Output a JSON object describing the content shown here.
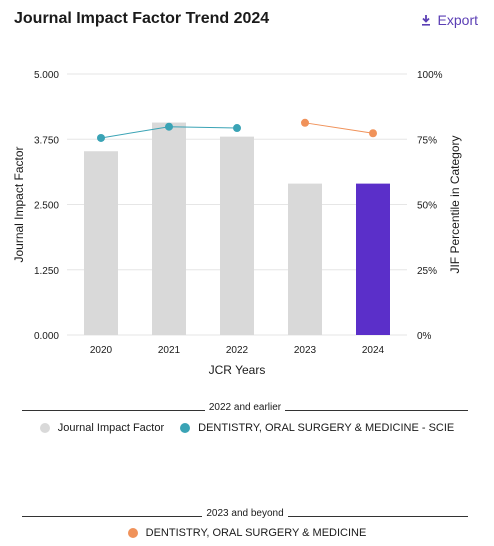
{
  "header": {
    "title": "Journal Impact Factor Trend 2024",
    "export_label": "Export",
    "export_icon": "download-icon"
  },
  "chart_data": {
    "type": "bar",
    "categories": [
      "2020",
      "2021",
      "2022",
      "2023",
      "2024"
    ],
    "xlabel": "JCR Years",
    "ylabel_left": "Journal Impact Factor",
    "ylabel_right": "JIF Percentile in Category",
    "ylim_left": [
      0,
      5
    ],
    "ylim_right": [
      0,
      100
    ],
    "yticks_left": [
      "0.000",
      "1.250",
      "2.500",
      "3.750",
      "5.000"
    ],
    "yticks_right": [
      "0%",
      "25%",
      "50%",
      "75%",
      "100%"
    ],
    "grid": true,
    "series": [
      {
        "name": "Journal Impact Factor",
        "type": "bar",
        "axis": "left",
        "values": [
          3.52,
          4.07,
          3.8,
          2.9,
          2.9
        ],
        "colors": [
          "#d9d9d9",
          "#d9d9d9",
          "#d9d9d9",
          "#d9d9d9",
          "#5b2fc9"
        ]
      },
      {
        "name": "DENTISTRY, ORAL SURGERY & MEDICINE - SCIE",
        "type": "line",
        "axis": "right",
        "color": "#3aa3b5",
        "values": [
          75.5,
          79.8,
          79.3,
          null,
          null
        ]
      },
      {
        "name": "DENTISTRY, ORAL SURGERY & MEDICINE",
        "type": "line",
        "axis": "right",
        "color": "#f0925a",
        "values": [
          null,
          null,
          null,
          81.3,
          77.3
        ]
      }
    ]
  },
  "legend": {
    "group1_label": "2022 and earlier",
    "group1_items": [
      {
        "label": "Journal Impact Factor",
        "color": "#d9d9d9"
      },
      {
        "label": "DENTISTRY, ORAL SURGERY & MEDICINE - SCIE",
        "color": "#3aa3b5"
      }
    ],
    "group2_label": "2023 and beyond",
    "group2_items": [
      {
        "label": "DENTISTRY, ORAL SURGERY & MEDICINE",
        "color": "#f0925a"
      }
    ]
  }
}
